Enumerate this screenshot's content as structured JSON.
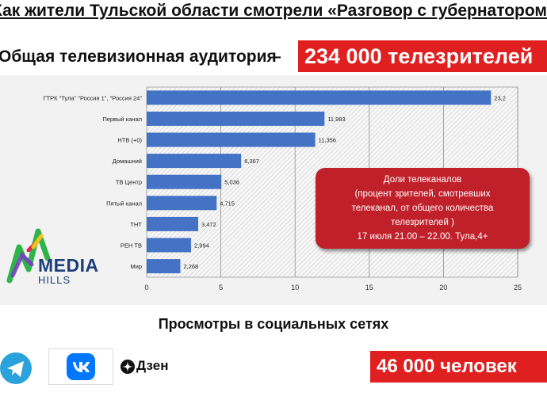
{
  "title": "Как жители Тульской области смотрели «Разговор с губернатором»",
  "audience": {
    "label": "Общая телевизионная аудитория",
    "dash": "–",
    "value": "234 000 телезрителей"
  },
  "callout": {
    "lines": [
      "Доли телеканалов",
      "(процент зрителей, смотревших",
      "телеканал, от общего количества",
      "телезрителей )",
      "17 июля 21.00 – 22.00. Тула,4+"
    ]
  },
  "logo": {
    "word1": "MEDIA",
    "word2": "HILLS"
  },
  "social": {
    "title": "Просмотры в социальных сетях",
    "dzen_label": "Дзен",
    "views_value": "46 000 человек",
    "icons": [
      "telegram-icon",
      "vk-icon",
      "dzen-icon"
    ]
  },
  "colors": {
    "bar": "#4472c4",
    "red": "#e02020",
    "callout": "#c0202a"
  },
  "chart_data": {
    "type": "bar",
    "orientation": "horizontal",
    "categories": [
      "ГТРК \"Тула\" \"Россия 1\", \"Россия 24\"",
      "Первый канал",
      "НТВ (+0)",
      "Домашний",
      "ТВ Центр",
      "Пятый канал",
      "ТНТ",
      "РЕН ТВ",
      "Мир"
    ],
    "values": [
      23.2,
      11.983,
      11.356,
      6.367,
      5.036,
      4.715,
      3.472,
      2.994,
      2.268
    ],
    "value_labels": [
      "23,2",
      "11,983",
      "11,356",
      "6,367",
      "5,036",
      "4,715",
      "3,472",
      "2,994",
      "2,268"
    ],
    "xticks": [
      "0",
      "5",
      "10",
      "15",
      "20",
      "25"
    ],
    "xlim": [
      0,
      25
    ],
    "grid": "vertical"
  }
}
